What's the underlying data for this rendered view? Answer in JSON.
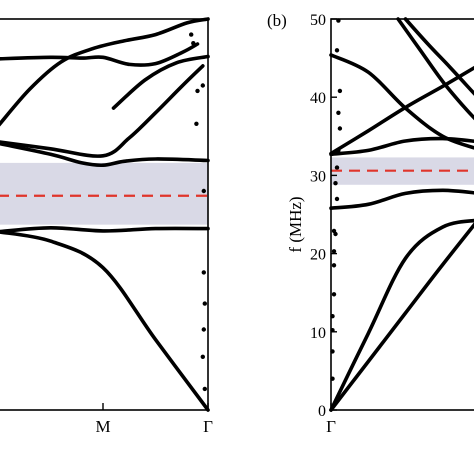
{
  "colors": {
    "band": "#000000",
    "gap_fill": "#d9d9e6",
    "midgap_line": "#e0352b"
  },
  "chart_data": [
    {
      "type": "line",
      "panel_label": "",
      "ylabel": "",
      "ylim": [
        0,
        50
      ],
      "x_ticks": [
        {
          "pos": 1.0,
          "label": "M"
        },
        {
          "pos": 2.0,
          "label": "Γ"
        }
      ],
      "xlim": [
        0.0,
        2.0
      ],
      "band_gap": {
        "from": 23.7,
        "to": 31.6
      },
      "midgap_line": 27.4,
      "series": [
        {
          "x": [
            0.0,
            0.5,
            1.0,
            1.5,
            2.0
          ],
          "values": [
            22.8,
            21.6,
            18.2,
            9.0,
            0.0
          ]
        },
        {
          "x": [
            0.0,
            0.5,
            1.0,
            1.5,
            2.0
          ],
          "values": [
            22.8,
            23.3,
            22.9,
            23.2,
            23.2
          ]
        },
        {
          "x": [
            0.0,
            0.5,
            0.8,
            1.0,
            1.2,
            1.5,
            2.0
          ],
          "values": [
            34.1,
            32.7,
            31.6,
            31.3,
            31.8,
            32.1,
            31.9
          ]
        },
        {
          "x": [
            0.0,
            0.5,
            1.0,
            1.25,
            1.5,
            1.75,
            1.95
          ],
          "values": [
            34.3,
            33.4,
            32.5,
            34.8,
            38.0,
            41.4,
            44.0
          ]
        },
        {
          "x": [
            0.0,
            0.5,
            0.8,
            1.0,
            1.25,
            1.5,
            1.75,
            1.9
          ],
          "values": [
            44.9,
            45.1,
            45.0,
            45.1,
            44.2,
            44.3,
            45.7,
            46.8
          ]
        },
        {
          "x": [
            0.0,
            0.3,
            0.6,
            0.9,
            1.2,
            1.5,
            1.8,
            2.0
          ],
          "values": [
            36.3,
            41.0,
            44.5,
            46.2,
            47.2,
            48.0,
            49.5,
            50.0
          ]
        },
        {
          "x": [
            1.1,
            1.4,
            1.7,
            2.0
          ],
          "values": [
            38.6,
            42.2,
            44.4,
            45.2
          ]
        }
      ],
      "points": [
        {
          "x": 1.84,
          "y": 48.0
        },
        {
          "x": 1.86,
          "y": 46.9
        },
        {
          "x": 1.9,
          "y": 40.8
        },
        {
          "x": 1.95,
          "y": 41.5
        },
        {
          "x": 1.89,
          "y": 36.6
        },
        {
          "x": 1.96,
          "y": 28.0
        },
        {
          "x": 1.96,
          "y": 17.6
        },
        {
          "x": 1.97,
          "y": 13.6
        },
        {
          "x": 1.96,
          "y": 10.3
        },
        {
          "x": 1.95,
          "y": 6.8
        },
        {
          "x": 1.97,
          "y": 2.7
        }
      ]
    },
    {
      "type": "line",
      "panel_label": "(b)",
      "ylabel": "f (MHz)",
      "ylim": [
        0,
        50
      ],
      "yticks": [
        0,
        10,
        20,
        30,
        40,
        50
      ],
      "x_ticks": [
        {
          "pos": 0.0,
          "label": "Γ"
        }
      ],
      "xlim": [
        0.0,
        1.0
      ],
      "band_gap": {
        "from": 28.8,
        "to": 32.3
      },
      "midgap_line": 30.6,
      "series": [
        {
          "x": [
            0.0,
            0.25,
            0.5,
            0.75,
            1.0
          ],
          "values": [
            0.0,
            6.2,
            12.4,
            18.6,
            24.6
          ]
        },
        {
          "x": [
            0.0,
            0.25,
            0.5,
            0.75,
            1.0
          ],
          "values": [
            0.0,
            9.8,
            19.4,
            23.4,
            24.3
          ]
        },
        {
          "x": [
            0.0,
            0.25,
            0.5,
            0.75,
            1.0
          ],
          "values": [
            25.8,
            26.3,
            27.7,
            28.1,
            27.7
          ]
        },
        {
          "x": [
            0.0,
            0.25,
            0.5,
            0.75,
            1.0
          ],
          "values": [
            32.7,
            33.2,
            34.4,
            34.7,
            34.3
          ]
        },
        {
          "x": [
            0.0,
            0.25,
            0.5,
            0.75,
            1.0
          ],
          "values": [
            45.4,
            43.2,
            38.6,
            35.0,
            33.3
          ]
        },
        {
          "x": [
            0.0,
            0.25,
            0.5,
            0.75,
            1.0
          ],
          "values": [
            32.8,
            35.7,
            38.7,
            41.4,
            44.2
          ]
        },
        {
          "x": [
            0.45,
            0.6,
            0.75,
            0.9,
            1.0
          ],
          "values": [
            50.0,
            46.0,
            42.0,
            38.6,
            36.6
          ]
        },
        {
          "x": [
            0.5,
            0.65,
            0.8,
            0.95,
            1.0
          ],
          "values": [
            50.0,
            46.8,
            43.8,
            40.7,
            39.7
          ]
        }
      ],
      "points": [
        {
          "x": 0.05,
          "y": 49.8
        },
        {
          "x": 0.04,
          "y": 46.0
        },
        {
          "x": 0.06,
          "y": 40.8
        },
        {
          "x": 0.05,
          "y": 38.0
        },
        {
          "x": 0.06,
          "y": 36.0
        },
        {
          "x": 0.05,
          "y": 33.2
        },
        {
          "x": 0.04,
          "y": 31.0
        },
        {
          "x": 0.03,
          "y": 29.0
        },
        {
          "x": 0.04,
          "y": 27.0
        },
        {
          "x": 0.02,
          "y": 22.9
        },
        {
          "x": 0.03,
          "y": 22.5
        },
        {
          "x": 0.02,
          "y": 20.3
        },
        {
          "x": 0.02,
          "y": 18.5
        },
        {
          "x": 0.02,
          "y": 14.8
        },
        {
          "x": 0.01,
          "y": 12.0
        },
        {
          "x": 0.01,
          "y": 10.2
        },
        {
          "x": 0.01,
          "y": 7.5
        },
        {
          "x": 0.01,
          "y": 4.0
        }
      ]
    }
  ]
}
